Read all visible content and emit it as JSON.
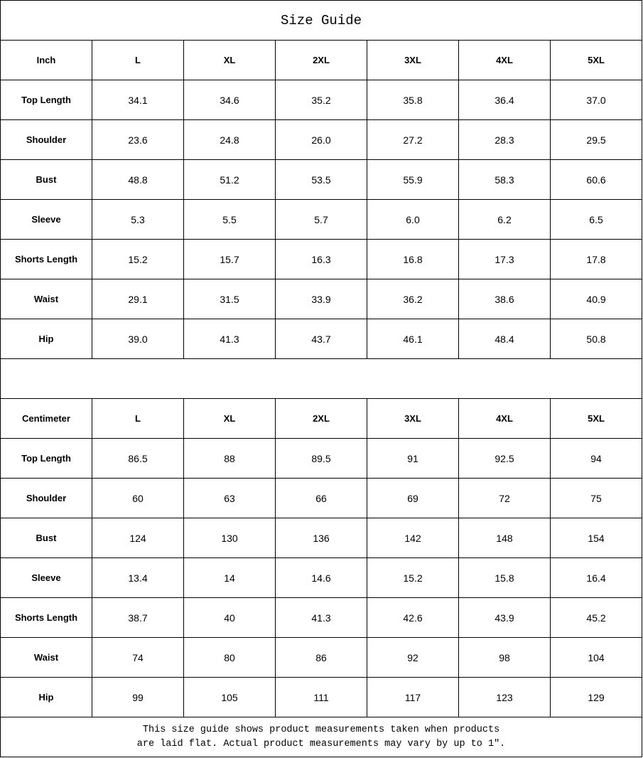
{
  "title": "Size Guide",
  "sizes": [
    "L",
    "XL",
    "2XL",
    "3XL",
    "4XL",
    "5XL"
  ],
  "inch": {
    "unit_label": "Inch",
    "rows": [
      {
        "label": "Top Length",
        "values": [
          "34.1",
          "34.6",
          "35.2",
          "35.8",
          "36.4",
          "37.0"
        ]
      },
      {
        "label": "Shoulder",
        "values": [
          "23.6",
          "24.8",
          "26.0",
          "27.2",
          "28.3",
          "29.5"
        ]
      },
      {
        "label": "Bust",
        "values": [
          "48.8",
          "51.2",
          "53.5",
          "55.9",
          "58.3",
          "60.6"
        ]
      },
      {
        "label": "Sleeve",
        "values": [
          "5.3",
          "5.5",
          "5.7",
          "6.0",
          "6.2",
          "6.5"
        ]
      },
      {
        "label": "Shorts Length",
        "values": [
          "15.2",
          "15.7",
          "16.3",
          "16.8",
          "17.3",
          "17.8"
        ]
      },
      {
        "label": "Waist",
        "values": [
          "29.1",
          "31.5",
          "33.9",
          "36.2",
          "38.6",
          "40.9"
        ]
      },
      {
        "label": "Hip",
        "values": [
          "39.0",
          "41.3",
          "43.7",
          "46.1",
          "48.4",
          "50.8"
        ]
      }
    ]
  },
  "centimeter": {
    "unit_label": "Centimeter",
    "rows": [
      {
        "label": "Top Length",
        "values": [
          "86.5",
          "88",
          "89.5",
          "91",
          "92.5",
          "94"
        ]
      },
      {
        "label": "Shoulder",
        "values": [
          "60",
          "63",
          "66",
          "69",
          "72",
          "75"
        ]
      },
      {
        "label": "Bust",
        "values": [
          "124",
          "130",
          "136",
          "142",
          "148",
          "154"
        ]
      },
      {
        "label": "Sleeve",
        "values": [
          "13.4",
          "14",
          "14.6",
          "15.2",
          "15.8",
          "16.4"
        ]
      },
      {
        "label": "Shorts Length",
        "values": [
          "38.7",
          "40",
          "41.3",
          "42.6",
          "43.9",
          "45.2"
        ]
      },
      {
        "label": "Waist",
        "values": [
          "74",
          "80",
          "86",
          "92",
          "98",
          "104"
        ]
      },
      {
        "label": "Hip",
        "values": [
          "99",
          "105",
          "111",
          "117",
          "123",
          "129"
        ]
      }
    ]
  },
  "note": {
    "line1": "This size guide shows product measurements taken when products",
    "line2": "are laid flat. Actual product measurements may vary by up to 1″."
  }
}
